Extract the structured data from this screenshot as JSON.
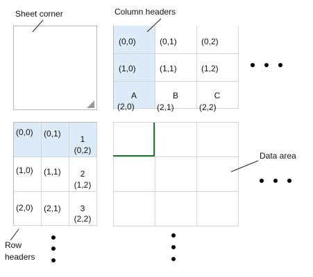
{
  "labels": {
    "sheet_corner": "Sheet corner",
    "column_headers": "Column headers",
    "data_area": "Data area",
    "row_headers_line1": "Row",
    "row_headers_line2": "headers"
  },
  "column_header_grid": {
    "row0": [
      "(0,0)",
      "(0,1)",
      "(0,2)"
    ],
    "row1": [
      "(1,0)",
      "(1,1)",
      "(1,2)"
    ],
    "letters": [
      "A",
      "B",
      "C"
    ],
    "row2": [
      "(2,0)",
      "(2,1)",
      "(2,2)"
    ]
  },
  "row_header_grid": {
    "row0": [
      "(0,0)",
      "(0,1)"
    ],
    "row1": [
      "(1,0)",
      "(1,1)"
    ],
    "row2": [
      "(2,0)",
      "(2,1)"
    ],
    "numbers": [
      "1",
      "2",
      "3"
    ],
    "last_col": [
      "(0,2)",
      "(1,2)",
      "(2,2)"
    ]
  },
  "colors": {
    "highlight": "#dcebf7",
    "grid_line": "#d4d4d4",
    "border": "#b8b8b8",
    "selection": "#2e6e3c"
  }
}
